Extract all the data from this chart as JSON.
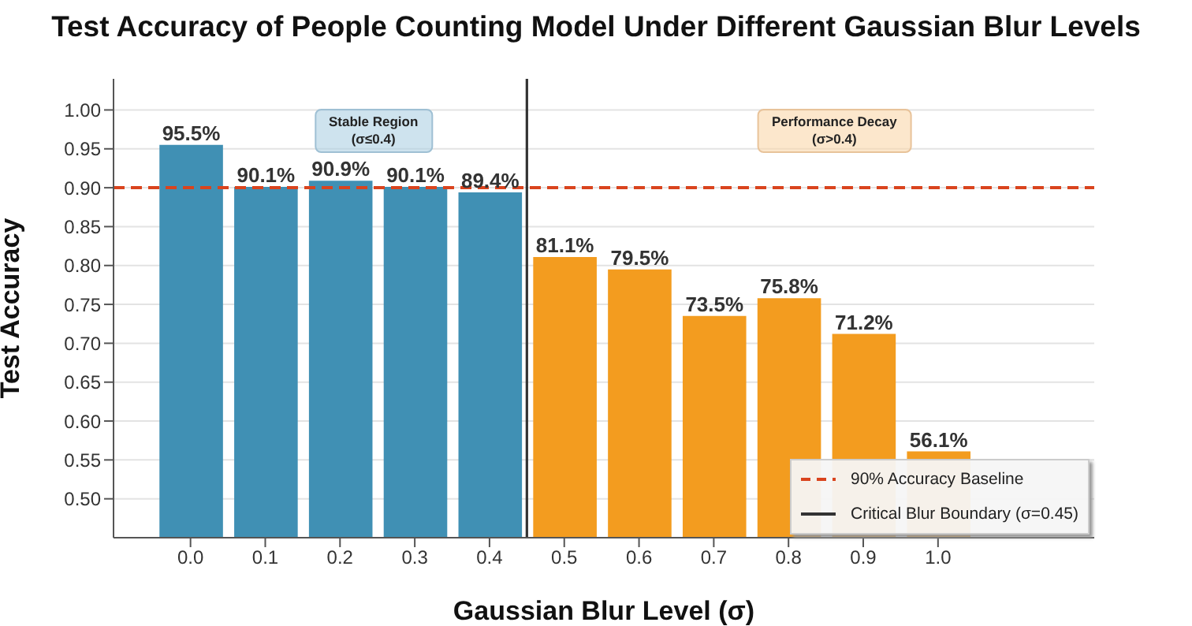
{
  "chart_data": {
    "type": "bar",
    "title": "Test Accuracy of People Counting Model Under Different Gaussian Blur Levels",
    "xlabel": "Gaussian Blur Level (σ)",
    "ylabel": "Test Accuracy",
    "x": [
      0.0,
      0.1,
      0.2,
      0.3,
      0.4,
      0.5,
      0.6,
      0.7,
      0.8,
      0.9,
      1.0
    ],
    "values": [
      0.955,
      0.901,
      0.909,
      0.901,
      0.894,
      0.811,
      0.795,
      0.735,
      0.758,
      0.712,
      0.561
    ],
    "value_labels": [
      "95.5%",
      "90.1%",
      "90.9%",
      "90.1%",
      "89.4%",
      "81.1%",
      "79.5%",
      "73.5%",
      "75.8%",
      "71.2%",
      "56.1%"
    ],
    "colors": [
      "#4090b4",
      "#4090b4",
      "#4090b4",
      "#4090b4",
      "#4090b4",
      "#f39c1f",
      "#f39c1f",
      "#f39c1f",
      "#f39c1f",
      "#f39c1f",
      "#f39c1f"
    ],
    "xlim": [
      -0.103,
      1.209
    ],
    "xticks": [
      {
        "value": 0.0,
        "label": "0.0"
      },
      {
        "value": 0.1,
        "label": "0.1"
      },
      {
        "value": 0.2,
        "label": "0.2"
      },
      {
        "value": 0.3,
        "label": "0.3"
      },
      {
        "value": 0.4,
        "label": "0.4"
      },
      {
        "value": 0.5,
        "label": "0.5"
      },
      {
        "value": 0.6,
        "label": "0.6"
      },
      {
        "value": 0.7,
        "label": "0.7"
      },
      {
        "value": 0.8,
        "label": "0.8"
      },
      {
        "value": 0.9,
        "label": "0.9"
      },
      {
        "value": 1.0,
        "label": "1.0"
      }
    ],
    "ylim": [
      0.45,
      1.04
    ],
    "yticks": [
      {
        "value": 0.5,
        "label": "0.50"
      },
      {
        "value": 0.55,
        "label": "0.55"
      },
      {
        "value": 0.6,
        "label": "0.60"
      },
      {
        "value": 0.65,
        "label": "0.65"
      },
      {
        "value": 0.7,
        "label": "0.70"
      },
      {
        "value": 0.75,
        "label": "0.75"
      },
      {
        "value": 0.8,
        "label": "0.80"
      },
      {
        "value": 0.85,
        "label": "0.85"
      },
      {
        "value": 0.9,
        "label": "0.90"
      },
      {
        "value": 0.95,
        "label": "0.95"
      },
      {
        "value": 1.0,
        "label": "1.00"
      }
    ],
    "ref_lines": [
      {
        "axis": "y",
        "value": 0.9,
        "label": "90% Accuracy Baseline",
        "color": "#d9441e",
        "line_style": "dashed"
      },
      {
        "axis": "x",
        "value": 0.45,
        "label": "Critical Blur Boundary (σ=0.45)",
        "color": "#333333",
        "line_style": "solid"
      }
    ],
    "annotations": [
      "Stable Region\n(σ≤0.4)",
      "Performance Decay\n(σ>0.4)"
    ],
    "grid": "y",
    "legend": "bottom right"
  }
}
